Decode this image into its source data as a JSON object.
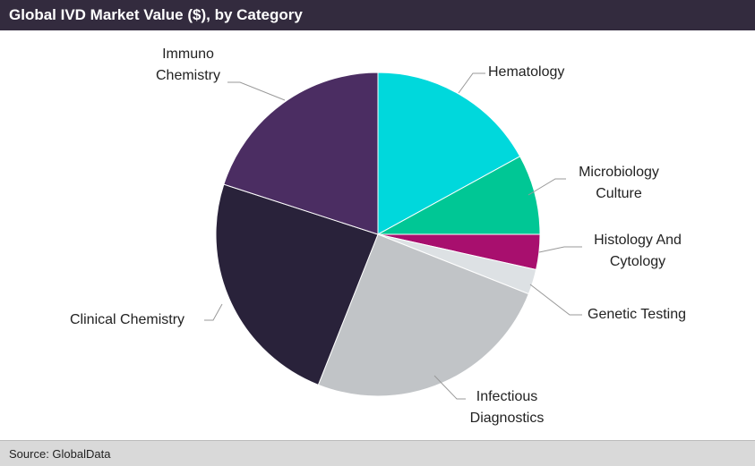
{
  "title": "Global IVD Market Value ($), by Category",
  "source": "Source: GlobalData",
  "chart_data": {
    "type": "pie",
    "title": "Global IVD Market Value ($), by Category",
    "unit": "percent (estimated)",
    "slices": [
      {
        "label": "Hematology",
        "value": 17,
        "color": "#00d8dc"
      },
      {
        "label": "Microbiology Culture",
        "value": 8,
        "color": "#00c795"
      },
      {
        "label": "Histology And Cytology",
        "value": 3.5,
        "color": "#a80f6e"
      },
      {
        "label": "Genetic Testing",
        "value": 2.5,
        "color": "#dde1e4"
      },
      {
        "label": "Infectious Diagnostics",
        "value": 25,
        "color": "#c1c4c7"
      },
      {
        "label": "Clinical Chemistry",
        "value": 24,
        "color": "#29223a"
      },
      {
        "label": "Immuno Chemistry",
        "value": 20,
        "color": "#4b2d62"
      }
    ],
    "legend": "none"
  }
}
